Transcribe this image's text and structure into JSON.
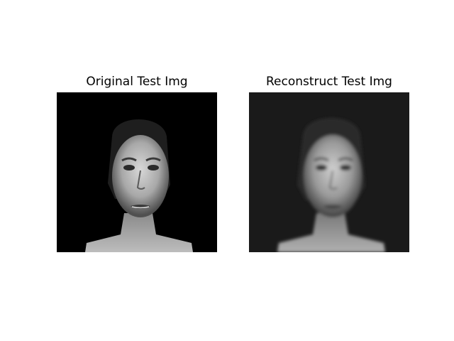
{
  "figure": {
    "panels": [
      {
        "title": "Original Test Img",
        "background_color": "#000000"
      },
      {
        "title": "Reconstruct Test Img",
        "background_color": "#1a1a1a"
      }
    ]
  }
}
